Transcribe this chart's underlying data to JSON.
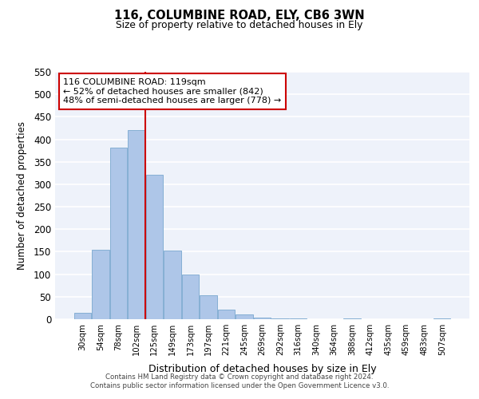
{
  "title": "116, COLUMBINE ROAD, ELY, CB6 3WN",
  "subtitle": "Size of property relative to detached houses in Ely",
  "xlabel": "Distribution of detached houses by size in Ely",
  "ylabel": "Number of detached properties",
  "bin_labels": [
    "30sqm",
    "54sqm",
    "78sqm",
    "102sqm",
    "125sqm",
    "149sqm",
    "173sqm",
    "197sqm",
    "221sqm",
    "245sqm",
    "269sqm",
    "292sqm",
    "316sqm",
    "340sqm",
    "364sqm",
    "388sqm",
    "412sqm",
    "435sqm",
    "459sqm",
    "483sqm",
    "507sqm"
  ],
  "bar_values": [
    15,
    155,
    382,
    420,
    322,
    153,
    100,
    54,
    22,
    11,
    4,
    2,
    1,
    0,
    0,
    1,
    0,
    0,
    0,
    0,
    2
  ],
  "bar_color": "#aec6e8",
  "bar_edge_color": "#85afd4",
  "vline_x": 3.5,
  "vline_color": "#cc0000",
  "annotation_text": "116 COLUMBINE ROAD: 119sqm\n← 52% of detached houses are smaller (842)\n48% of semi-detached houses are larger (778) →",
  "annotation_box_color": "white",
  "annotation_box_edge": "#cc0000",
  "ylim": [
    0,
    550
  ],
  "yticks": [
    0,
    50,
    100,
    150,
    200,
    250,
    300,
    350,
    400,
    450,
    500,
    550
  ],
  "footer_text": "Contains HM Land Registry data © Crown copyright and database right 2024.\nContains public sector information licensed under the Open Government Licence v3.0.",
  "bg_color": "#eef2fa"
}
